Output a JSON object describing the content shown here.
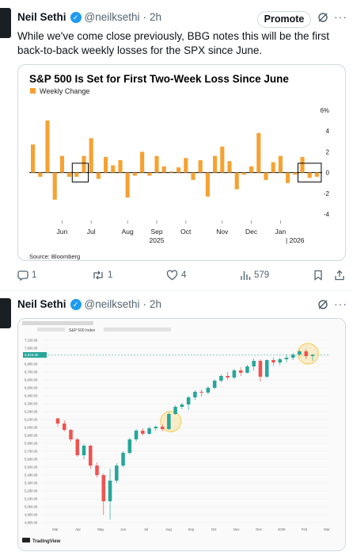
{
  "tweet1": {
    "name": "Neil Sethi",
    "handle": "@neilksethi",
    "time": "2h",
    "promote": "Promote",
    "text": "While we've come close previously, BBG notes this will be the first back-to-back weekly losses for the SPX since June.",
    "actions": {
      "replies": "1",
      "retweets": "1",
      "likes": "4",
      "views": "579"
    }
  },
  "tweet2": {
    "name": "Neil Sethi",
    "handle": "@neilksethi",
    "time": "2h"
  },
  "icons": [
    "verified-badge-icon",
    "grok-icon",
    "more-icon",
    "reply-icon",
    "retweet-icon",
    "like-icon",
    "views-icon",
    "bookmark-icon",
    "share-icon"
  ],
  "colors": {
    "bar": "#f5a233",
    "up_candle": "#26a69a",
    "down_candle": "#ef5350",
    "highlight": "#f5d26a",
    "link_blue": "#1d9bf0"
  },
  "chart_data": [
    {
      "type": "bar",
      "title": "S&P 500 Is Set for First Two-Week Loss Since June",
      "legend": "Weekly Change",
      "source": "Source: Bloomberg",
      "yticks": [
        "6%",
        "4",
        "2",
        "0",
        "-2",
        "-4"
      ],
      "ytick_values": [
        6,
        4,
        2,
        0,
        -2,
        -4
      ],
      "ylim": [
        -4.6,
        6.6
      ],
      "xticks": [
        {
          "label": "Jun",
          "index": 4
        },
        {
          "label": "Jul",
          "index": 8
        },
        {
          "label": "Aug",
          "index": 13
        },
        {
          "label": "Sep",
          "index": 17
        },
        {
          "label": "Oct",
          "index": 21
        },
        {
          "label": "Nov",
          "index": 26
        },
        {
          "label": "Dec",
          "index": 30
        },
        {
          "label": "Jan",
          "index": 34
        }
      ],
      "year_labels": [
        {
          "label": "2025",
          "index": 17
        },
        {
          "label": "| 2026",
          "index": 36
        }
      ],
      "values": [
        2.7,
        -0.4,
        5.0,
        -2.6,
        1.6,
        -0.4,
        -0.4,
        1.6,
        3.3,
        -0.6,
        1.5,
        0.7,
        1.2,
        -2.4,
        -0.3,
        2.0,
        -0.3,
        1.6,
        0.6,
        0.1,
        0.5,
        1.4,
        -0.7,
        1.2,
        -2.3,
        1.6,
        2.5,
        1.1,
        -1.6,
        -0.2,
        0.6,
        3.8,
        -0.7,
        1.0,
        1.6,
        -1.0,
        -0.2,
        1.5,
        -0.5,
        -0.4
      ],
      "highlight_boxes": [
        [
          6,
          7
        ],
        [
          37,
          39
        ]
      ]
    },
    {
      "type": "candlestick",
      "source": "TradingView",
      "title": "S&P 500 Index",
      "price_label": "6,915.06",
      "yticks": [
        "7,100.00",
        "7,000.00",
        "6,900.00",
        "6,800.00",
        "6,700.00",
        "6,600.00",
        "6,500.00",
        "6,400.00",
        "6,300.00",
        "6,200.00",
        "6,100.00",
        "6,000.00",
        "5,900.00",
        "5,800.00",
        "5,700.00",
        "5,600.00",
        "5,500.00",
        "5,400.00",
        "5,300.00",
        "5,200.00",
        "5,100.00",
        "5,000.00",
        "4,900.00",
        "4,800.00"
      ],
      "ylim": [
        4750,
        7150
      ],
      "xticks": [
        "Mar",
        "Apr",
        "May",
        "Jun",
        "Jul",
        "Aug",
        "Sep",
        "Oct",
        "Nov",
        "Dec",
        "2026",
        "Feb",
        "Mar"
      ],
      "candles": [
        [
          6115,
          6120,
          6010,
          6050
        ],
        [
          6050,
          6090,
          5950,
          5970
        ],
        [
          5970,
          5980,
          5820,
          5850
        ],
        [
          5850,
          5870,
          5630,
          5650
        ],
        [
          5650,
          5790,
          5600,
          5770
        ],
        [
          5770,
          5780,
          5480,
          5520
        ],
        [
          5520,
          5560,
          5370,
          5400
        ],
        [
          5400,
          5420,
          4900,
          5070
        ],
        [
          5070,
          5480,
          4840,
          5330
        ],
        [
          5330,
          5550,
          5300,
          5520
        ],
        [
          5520,
          5700,
          5500,
          5680
        ],
        [
          5680,
          5870,
          5660,
          5850
        ],
        [
          5850,
          5980,
          5820,
          5960
        ],
        [
          5960,
          5990,
          5900,
          5920
        ],
        [
          5920,
          6010,
          5910,
          5990
        ],
        [
          5990,
          6020,
          5960,
          6010
        ],
        [
          6010,
          6040,
          5950,
          5980
        ],
        [
          5980,
          6190,
          5970,
          6170
        ],
        [
          6170,
          6280,
          6160,
          6260
        ],
        [
          6260,
          6310,
          6230,
          6290
        ],
        [
          6290,
          6400,
          6220,
          6380
        ],
        [
          6380,
          6470,
          6350,
          6450
        ],
        [
          6450,
          6480,
          6390,
          6440
        ],
        [
          6440,
          6520,
          6420,
          6500
        ],
        [
          6500,
          6610,
          6480,
          6590
        ],
        [
          6590,
          6670,
          6570,
          6650
        ],
        [
          6650,
          6700,
          6600,
          6630
        ],
        [
          6630,
          6740,
          6610,
          6720
        ],
        [
          6720,
          6760,
          6650,
          6690
        ],
        [
          6690,
          6790,
          6680,
          6770
        ],
        [
          6770,
          6870,
          6720,
          6840
        ],
        [
          6840,
          6860,
          6580,
          6640
        ],
        [
          6640,
          6860,
          6620,
          6850
        ],
        [
          6850,
          6880,
          6780,
          6820
        ],
        [
          6820,
          6880,
          6790,
          6860
        ],
        [
          6860,
          6920,
          6820,
          6880
        ],
        [
          6880,
          6940,
          6850,
          6920
        ],
        [
          6920,
          6980,
          6900,
          6960
        ],
        [
          6960,
          6990,
          6860,
          6900
        ],
        [
          6900,
          6930,
          6840,
          6915
        ]
      ],
      "highlight_circles": [
        17,
        38
      ]
    }
  ]
}
